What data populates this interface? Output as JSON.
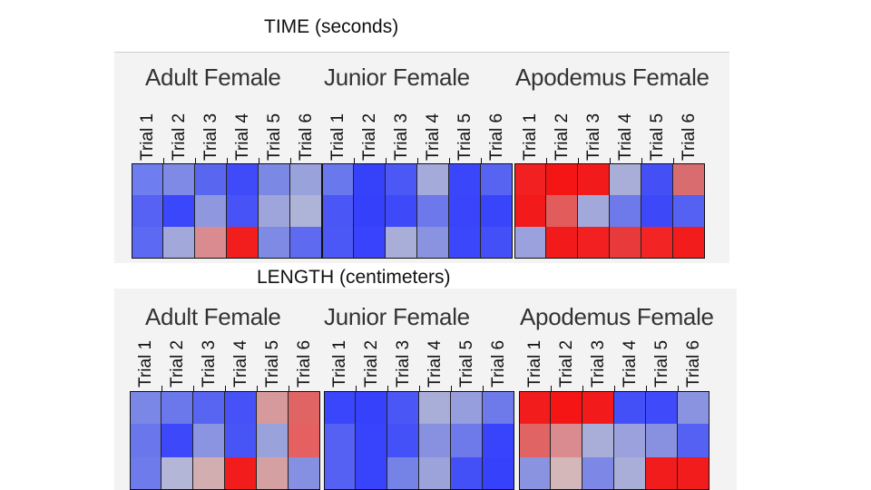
{
  "chart_data": [
    {
      "type": "heatmap",
      "title": "TIME (seconds)",
      "groups": [
        {
          "name": "Adult Female",
          "columns": [
            "Trial 1",
            "Trial 2",
            "Trial 3",
            "Trial 4",
            "Trial 5",
            "Trial 6"
          ],
          "cells": [
            [
              "#6e7df0",
              "#7e8ae6",
              "#5967f0",
              "#3f4af8",
              "#7b88e4",
              "#9aa2dc"
            ],
            [
              "#5562f4",
              "#3b47fb",
              "#8f98de",
              "#4753f7",
              "#9ea5db",
              "#aeb3d8"
            ],
            [
              "#5c69f2",
              "#a2a9da",
              "#d98b8f",
              "#f21e1e",
              "#7f8ae4",
              "#5e6af0"
            ]
          ]
        },
        {
          "name": "Junior Female",
          "columns": [
            "Trial 1",
            "Trial 2",
            "Trial 3",
            "Trial 4",
            "Trial 5",
            "Trial 6"
          ],
          "cells": [
            [
              "#6a78ee",
              "#3641fa",
              "#4c58f5",
              "#a4aad9",
              "#3a46fa",
              "#5763f1"
            ],
            [
              "#4a56f6",
              "#3540fb",
              "#3e4afa",
              "#6d78ea",
              "#3a45fb",
              "#3945fb"
            ],
            [
              "#4c58f6",
              "#3843fb",
              "#a8aed8",
              "#8a93e0",
              "#3b47fa",
              "#4350f8"
            ]
          ]
        },
        {
          "name": "Apodemus Female",
          "columns": [
            "Trial 1",
            "Trial 2",
            "Trial 3",
            "Trial 4",
            "Trial 5",
            "Trial 6"
          ],
          "cells": [
            [
              "#f22020",
              "#f51515",
              "#f21a1a",
              "#a9aed8",
              "#4450f6",
              "#d96c6e"
            ],
            [
              "#f21a1a",
              "#e35c5c",
              "#a2a9da",
              "#6e79ea",
              "#3d49f9",
              "#5561f2"
            ],
            [
              "#9aa1dc",
              "#f21a1a",
              "#f22020",
              "#e83a3a",
              "#f22424",
              "#f21c1c"
            ]
          ]
        }
      ]
    },
    {
      "type": "heatmap",
      "title": "LENGTH (centimeters)",
      "groups": [
        {
          "name": "Adult Female",
          "columns": [
            "Trial 1",
            "Trial 2",
            "Trial 3",
            "Trial 4",
            "Trial 5",
            "Trial 6"
          ],
          "cells": [
            [
              "#7b87e6",
              "#6b78ec",
              "#5765f2",
              "#4652f7",
              "#d6999c",
              "#e06464"
            ],
            [
              "#6a77ec",
              "#3c48fa",
              "#8a94e0",
              "#4855f6",
              "#9aa2dc",
              "#e56060"
            ],
            [
              "#6e7bea",
              "#b3b6d6",
              "#d3aeb1",
              "#f21c1c",
              "#d4a0a2",
              "#8590e2"
            ]
          ]
        },
        {
          "name": "Junior Female",
          "columns": [
            "Trial 1",
            "Trial 2",
            "Trial 3",
            "Trial 4",
            "Trial 5",
            "Trial 6"
          ],
          "cells": [
            [
              "#3a46fb",
              "#3641fb",
              "#4a56f6",
              "#a8aed8",
              "#969edd",
              "#6e7aea"
            ],
            [
              "#5561f3",
              "#3844fb",
              "#4551f8",
              "#8891e0",
              "#6e7aea",
              "#3844fb"
            ],
            [
              "#5561f3",
              "#3844fb",
              "#7683e6",
              "#9ca3db",
              "#4450f7",
              "#3641fb"
            ]
          ]
        },
        {
          "name": "Apodemus Female",
          "columns": [
            "Trial 1",
            "Trial 2",
            "Trial 3",
            "Trial 4",
            "Trial 5",
            "Trial 6"
          ],
          "cells": [
            [
              "#f21c1c",
              "#f51515",
              "#f21a1a",
              "#4450f7",
              "#3f4bfa",
              "#8a93e0"
            ],
            [
              "#e06464",
              "#d98b8f",
              "#a8aed8",
              "#9aa1dc",
              "#8891e0",
              "#5561f3"
            ],
            [
              "#8a93e0",
              "#d4b7b9",
              "#7c87e6",
              "#a8aed8",
              "#f21c1c",
              "#f21c1c"
            ]
          ]
        }
      ]
    }
  ]
}
